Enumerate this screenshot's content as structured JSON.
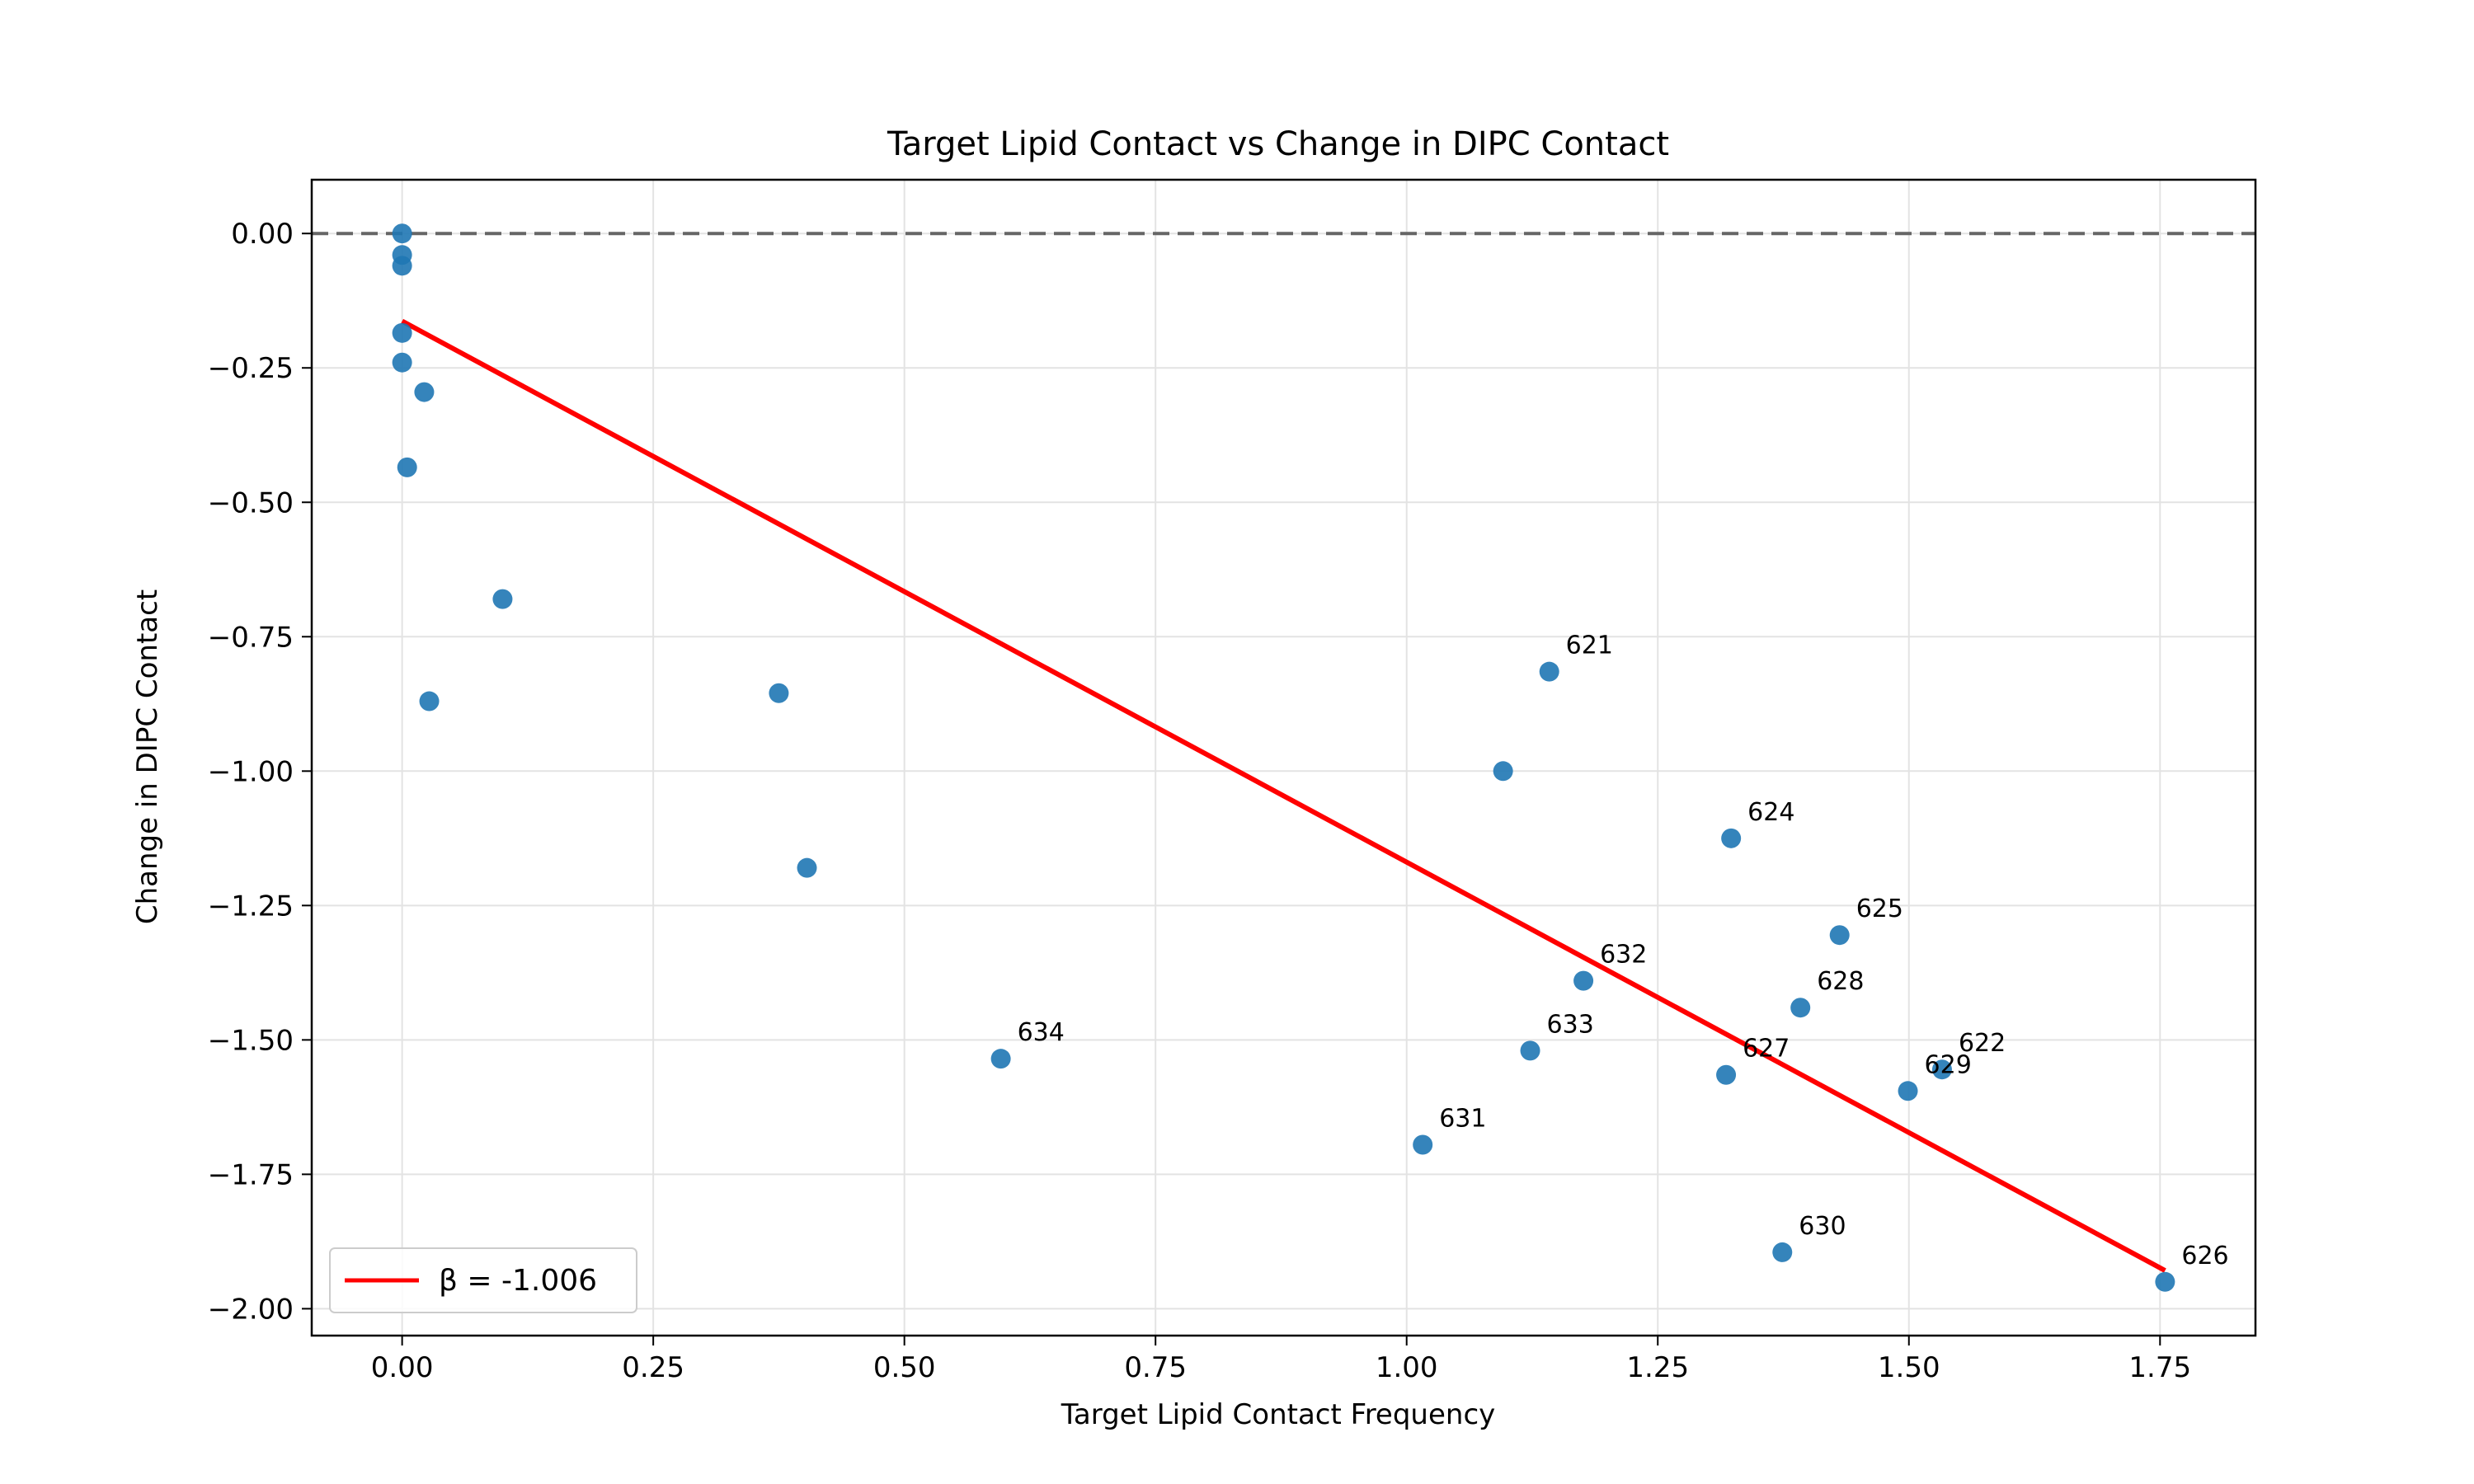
{
  "chart_data": {
    "type": "scatter",
    "title": "Target Lipid Contact vs Change in DIPC Contact",
    "xlabel": "Target Lipid Contact Frequency",
    "ylabel": "Change in DIPC Contact",
    "xlim": [
      -0.09,
      1.845
    ],
    "ylim": [
      -2.05,
      0.1
    ],
    "xticks": [
      0.0,
      0.25,
      0.5,
      0.75,
      1.0,
      1.25,
      1.5,
      1.75
    ],
    "xtick_labels": [
      "0.00",
      "0.25",
      "0.50",
      "0.75",
      "1.00",
      "1.25",
      "1.50",
      "1.75"
    ],
    "yticks": [
      0.0,
      -0.25,
      -0.5,
      -0.75,
      -1.0,
      -1.25,
      -1.5,
      -1.75,
      -2.0
    ],
    "ytick_labels": [
      "0.00",
      "−0.25",
      "−0.50",
      "−0.75",
      "−1.00",
      "−1.25",
      "−1.50",
      "−1.75",
      "−2.00"
    ],
    "grid": true,
    "reference_line": {
      "y": 0.0,
      "style": "dashed",
      "color": "#666666"
    },
    "points": [
      {
        "x": 0.0,
        "y": 0.0,
        "label": ""
      },
      {
        "x": 0.0,
        "y": -0.04,
        "label": ""
      },
      {
        "x": 0.0,
        "y": -0.06,
        "label": ""
      },
      {
        "x": 0.0,
        "y": -0.185,
        "label": ""
      },
      {
        "x": 0.0,
        "y": -0.24,
        "label": ""
      },
      {
        "x": 0.022,
        "y": -0.295,
        "label": ""
      },
      {
        "x": 0.005,
        "y": -0.435,
        "label": ""
      },
      {
        "x": 0.1,
        "y": -0.68,
        "label": ""
      },
      {
        "x": 0.027,
        "y": -0.87,
        "label": ""
      },
      {
        "x": 0.375,
        "y": -0.855,
        "label": ""
      },
      {
        "x": 0.403,
        "y": -1.18,
        "label": ""
      },
      {
        "x": 0.596,
        "y": -1.535,
        "label": "634"
      },
      {
        "x": 1.016,
        "y": -1.695,
        "label": "631"
      },
      {
        "x": 1.096,
        "y": -1.0,
        "label": ""
      },
      {
        "x": 1.142,
        "y": -0.815,
        "label": "621"
      },
      {
        "x": 1.123,
        "y": -1.52,
        "label": "633"
      },
      {
        "x": 1.176,
        "y": -1.39,
        "label": "632"
      },
      {
        "x": 1.318,
        "y": -1.565,
        "label": "627"
      },
      {
        "x": 1.323,
        "y": -1.125,
        "label": "624"
      },
      {
        "x": 1.374,
        "y": -1.895,
        "label": "630"
      },
      {
        "x": 1.392,
        "y": -1.44,
        "label": "628"
      },
      {
        "x": 1.431,
        "y": -1.305,
        "label": "625"
      },
      {
        "x": 1.499,
        "y": -1.595,
        "label": "629"
      },
      {
        "x": 1.533,
        "y": -1.555,
        "label": "622"
      },
      {
        "x": 1.755,
        "y": -1.95,
        "label": "626"
      }
    ],
    "point_color": "#1f77b4",
    "fit_line": {
      "x": [
        0.0,
        1.755
      ],
      "y": [
        -0.163,
        -1.929
      ],
      "color": "#ff0000"
    },
    "legend": {
      "position": "lower-left",
      "entries": [
        "β = -1.006"
      ]
    }
  }
}
